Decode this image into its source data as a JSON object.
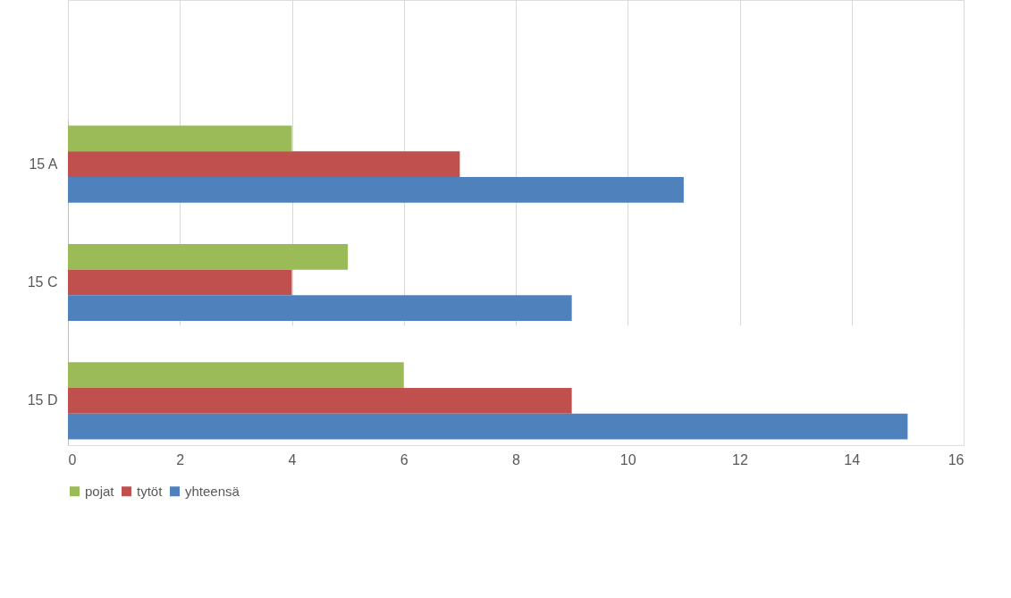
{
  "chart_data": {
    "type": "bar",
    "orientation": "horizontal",
    "categories": [
      "15 A",
      "15 C",
      "15 D"
    ],
    "series": [
      {
        "name": "pojat",
        "color": "#9bbb59",
        "values": [
          4,
          5,
          6
        ]
      },
      {
        "name": "tytöt",
        "color": "#c0504d",
        "values": [
          7,
          4,
          9
        ]
      },
      {
        "name": "yhteensä",
        "color": "#4f81bd",
        "values": [
          11,
          9,
          15
        ]
      }
    ],
    "xlim": [
      0,
      16
    ],
    "xticks": [
      0,
      2,
      4,
      6,
      8,
      10,
      12,
      14,
      16
    ],
    "grid": "x",
    "legend": "bottom"
  }
}
